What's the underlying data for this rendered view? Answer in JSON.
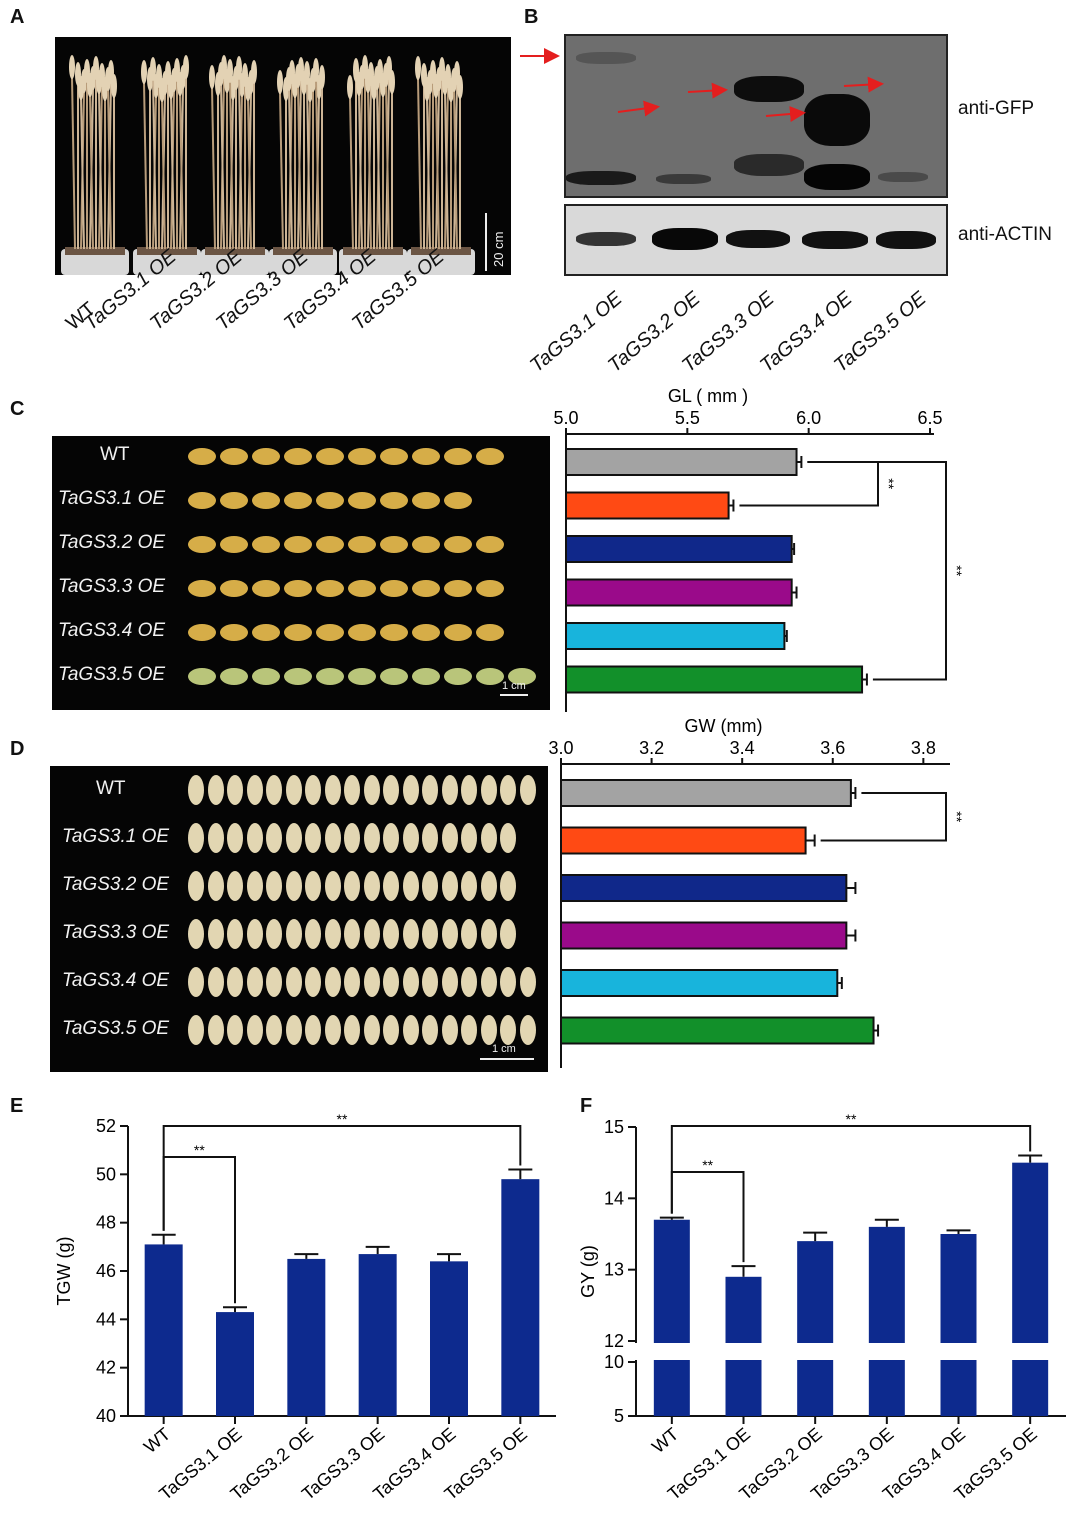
{
  "panels": {
    "a": "A",
    "b": "B",
    "c": "C",
    "d": "D",
    "e": "E",
    "f": "F"
  },
  "panel_a": {
    "scale": "20 cm",
    "labels": [
      "WT",
      "TaGS3.1 OE",
      "TaGS3.2 OE",
      "TaGS3.3 OE",
      "TaGS3.4 OE",
      "TaGS3.5 OE"
    ]
  },
  "panel_b": {
    "blot_top_label": "anti-GFP",
    "blot_bottom_label": "anti-ACTIN",
    "lanes": [
      "TaGS3.1 OE",
      "TaGS3.2 OE",
      "TaGS3.3 OE",
      "TaGS3.4 OE",
      "TaGS3.5 OE"
    ]
  },
  "panel_c": {
    "rows": [
      "WT",
      "TaGS3.1 OE",
      "TaGS3.2 OE",
      "TaGS3.3 OE",
      "TaGS3.4 OE",
      "TaGS3.5 OE"
    ],
    "scale": "1 cm"
  },
  "panel_d": {
    "rows": [
      "WT",
      "TaGS3.1 OE",
      "TaGS3.2 OE",
      "TaGS3.3 OE",
      "TaGS3.4 OE",
      "TaGS3.5 OE"
    ],
    "scale": "1 cm"
  },
  "colors": {
    "wt": "#a3a3a3",
    "gs1": "#ff4a14",
    "gs2": "#10288a",
    "gs3": "#9a0a8a",
    "gs4": "#18b4dc",
    "gs5": "#12902a",
    "bar_blue": "#0d2a8e",
    "arrow": "#e41e1e"
  },
  "chart_data": [
    {
      "id": "C",
      "type": "bar",
      "orientation": "horizontal",
      "title": "GL ( mm )",
      "categories": [
        "WT",
        "TaGS3.1 OE",
        "TaGS3.2 OE",
        "TaGS3.3 OE",
        "TaGS3.4 OE",
        "TaGS3.5 OE"
      ],
      "values": [
        5.95,
        5.67,
        5.93,
        5.93,
        5.9,
        6.22
      ],
      "errors": [
        0.02,
        0.02,
        0.01,
        0.02,
        0.01,
        0.02
      ],
      "xlim": [
        5.0,
        6.5
      ],
      "ticks": [
        5.0,
        5.5,
        6.0,
        6.5
      ],
      "tick_labels": [
        "5.0",
        "5.5",
        "6.0",
        "6.5"
      ],
      "significance": [
        {
          "from": "WT",
          "to": "TaGS3.1 OE",
          "label": "**"
        },
        {
          "from": "WT",
          "to": "TaGS3.5 OE",
          "label": "**"
        }
      ]
    },
    {
      "id": "D",
      "type": "bar",
      "orientation": "horizontal",
      "title": "GW (mm)",
      "categories": [
        "WT",
        "TaGS3.1 OE",
        "TaGS3.2 OE",
        "TaGS3.3 OE",
        "TaGS3.4 OE",
        "TaGS3.5 OE"
      ],
      "values": [
        3.64,
        3.54,
        3.63,
        3.63,
        3.61,
        3.69
      ],
      "errors": [
        0.01,
        0.02,
        0.02,
        0.02,
        0.01,
        0.01
      ],
      "xlim": [
        3.0,
        3.85
      ],
      "ticks": [
        3.0,
        3.2,
        3.4,
        3.6,
        3.8
      ],
      "tick_labels": [
        "3.0",
        "3.2",
        "3.4",
        "3.6",
        "3.8"
      ],
      "significance": [
        {
          "from": "WT",
          "to": "TaGS3.1 OE",
          "label": "**"
        }
      ]
    },
    {
      "id": "E",
      "type": "bar",
      "ylabel": "TGW (g)",
      "categories": [
        "WT",
        "TaGS3.1 OE",
        "TaGS3.2 OE",
        "TaGS3.3 OE",
        "TaGS3.4 OE",
        "TaGS3.5 OE"
      ],
      "values": [
        47.1,
        44.3,
        46.5,
        46.7,
        46.4,
        49.8
      ],
      "errors": [
        0.4,
        0.2,
        0.2,
        0.3,
        0.3,
        0.4
      ],
      "ylim": [
        40,
        52
      ],
      "ticks": [
        40,
        42,
        44,
        46,
        48,
        50,
        52
      ],
      "tick_labels": [
        "40",
        "42",
        "44",
        "46",
        "48",
        "50",
        "52"
      ],
      "significance": [
        {
          "from": "WT",
          "to": "TaGS3.1 OE",
          "label": "**"
        },
        {
          "from": "WT",
          "to": "TaGS3.5 OE",
          "label": "**"
        }
      ]
    },
    {
      "id": "F",
      "type": "bar",
      "ylabel": "GY (g)",
      "categories": [
        "WT",
        "TaGS3.1 OE",
        "TaGS3.2 OE",
        "TaGS3.3 OE",
        "TaGS3.4 OE",
        "TaGS3.5 OE"
      ],
      "values": [
        13.7,
        12.9,
        13.4,
        13.6,
        13.5,
        14.5
      ],
      "errors": [
        0.03,
        0.15,
        0.12,
        0.1,
        0.05,
        0.1
      ],
      "ylim_upper": [
        12,
        15
      ],
      "ylim_lower": [
        5,
        10
      ],
      "ticks_upper": [
        12,
        13,
        14,
        15
      ],
      "tick_labels_upper": [
        "12",
        "13",
        "14",
        "15"
      ],
      "ticks_lower": [
        5,
        10
      ],
      "tick_labels_lower": [
        "5",
        "10"
      ],
      "significance": [
        {
          "from": "WT",
          "to": "TaGS3.1 OE",
          "label": "**"
        },
        {
          "from": "WT",
          "to": "TaGS3.5 OE",
          "label": "**"
        }
      ]
    }
  ]
}
